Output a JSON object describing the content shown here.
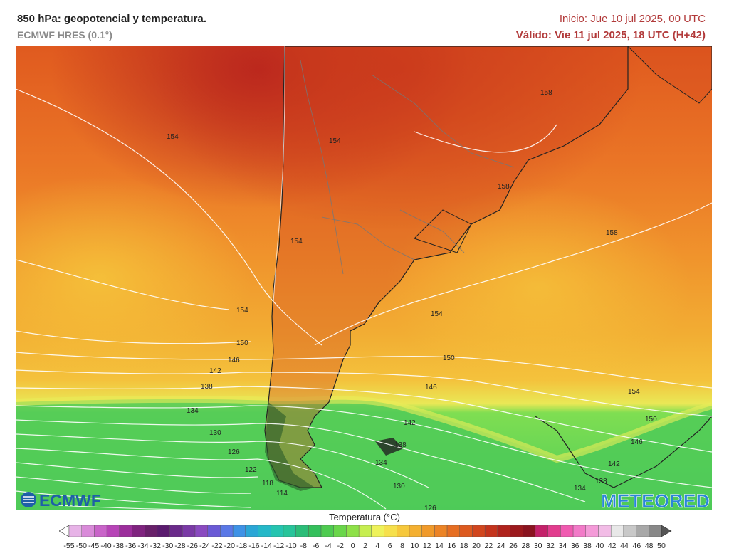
{
  "header": {
    "title": "850 hPa: geopotencial y temperatura.",
    "model": "ECMWF HRES (0.1°)",
    "init": "Inicio: Jue 10 jul 2025, 00 UTC",
    "valid": "Válido: Vie 11 jul 2025, 18 UTC (H+42)"
  },
  "branding": {
    "left_logo": "ECMWF",
    "right_logo": "METEORED"
  },
  "contour_labels": [
    "154",
    "154",
    "158",
    "158",
    "158",
    "154",
    "154",
    "154",
    "150",
    "150",
    "146",
    "146",
    "142",
    "142",
    "138",
    "138",
    "134",
    "134",
    "130",
    "130",
    "126",
    "126",
    "122",
    "118",
    "114",
    "154",
    "150",
    "146",
    "142",
    "138",
    "134"
  ],
  "legend": {
    "title": "Temperatura (°C)",
    "ticks": [
      "-55",
      "-50",
      "-45",
      "-40",
      "-38",
      "-36",
      "-34",
      "-32",
      "-30",
      "-28",
      "-26",
      "-24",
      "-22",
      "-20",
      "-18",
      "-16",
      "-14",
      "-12",
      "-10",
      "-8",
      "-6",
      "-4",
      "-2",
      "0",
      "2",
      "4",
      "6",
      "8",
      "10",
      "12",
      "14",
      "16",
      "18",
      "20",
      "22",
      "24",
      "26",
      "28",
      "30",
      "32",
      "34",
      "36",
      "38",
      "40",
      "42",
      "44",
      "46",
      "48",
      "50"
    ],
    "colors": [
      "#ffffff",
      "#e7b3e7",
      "#d98ad9",
      "#c964c9",
      "#b744b7",
      "#9c2e9c",
      "#7f237f",
      "#68206a",
      "#5a1b6e",
      "#6a2a8a",
      "#7a3aa6",
      "#8a4ac0",
      "#6a5ad6",
      "#5a78e6",
      "#3e92e6",
      "#2aa6d6",
      "#25b8c8",
      "#25c4b0",
      "#27c49a",
      "#2bbd78",
      "#34c05c",
      "#4ecb50",
      "#6ad64a",
      "#8ee148",
      "#c6ee50",
      "#eef25a",
      "#f6e04c",
      "#f6c83c",
      "#f4b031",
      "#f09a2a",
      "#ec8426",
      "#e66e22",
      "#dd5a1f",
      "#d1461e",
      "#c4341d",
      "#b0231d",
      "#9c1a1e",
      "#8a1420",
      "#c4216a",
      "#e23c8e",
      "#f05ab0",
      "#f27ac8",
      "#f49ad8",
      "#f2bce6",
      "#e8e8e8",
      "#c8c8c8",
      "#a8a8a8",
      "#888888",
      "#555555"
    ]
  }
}
